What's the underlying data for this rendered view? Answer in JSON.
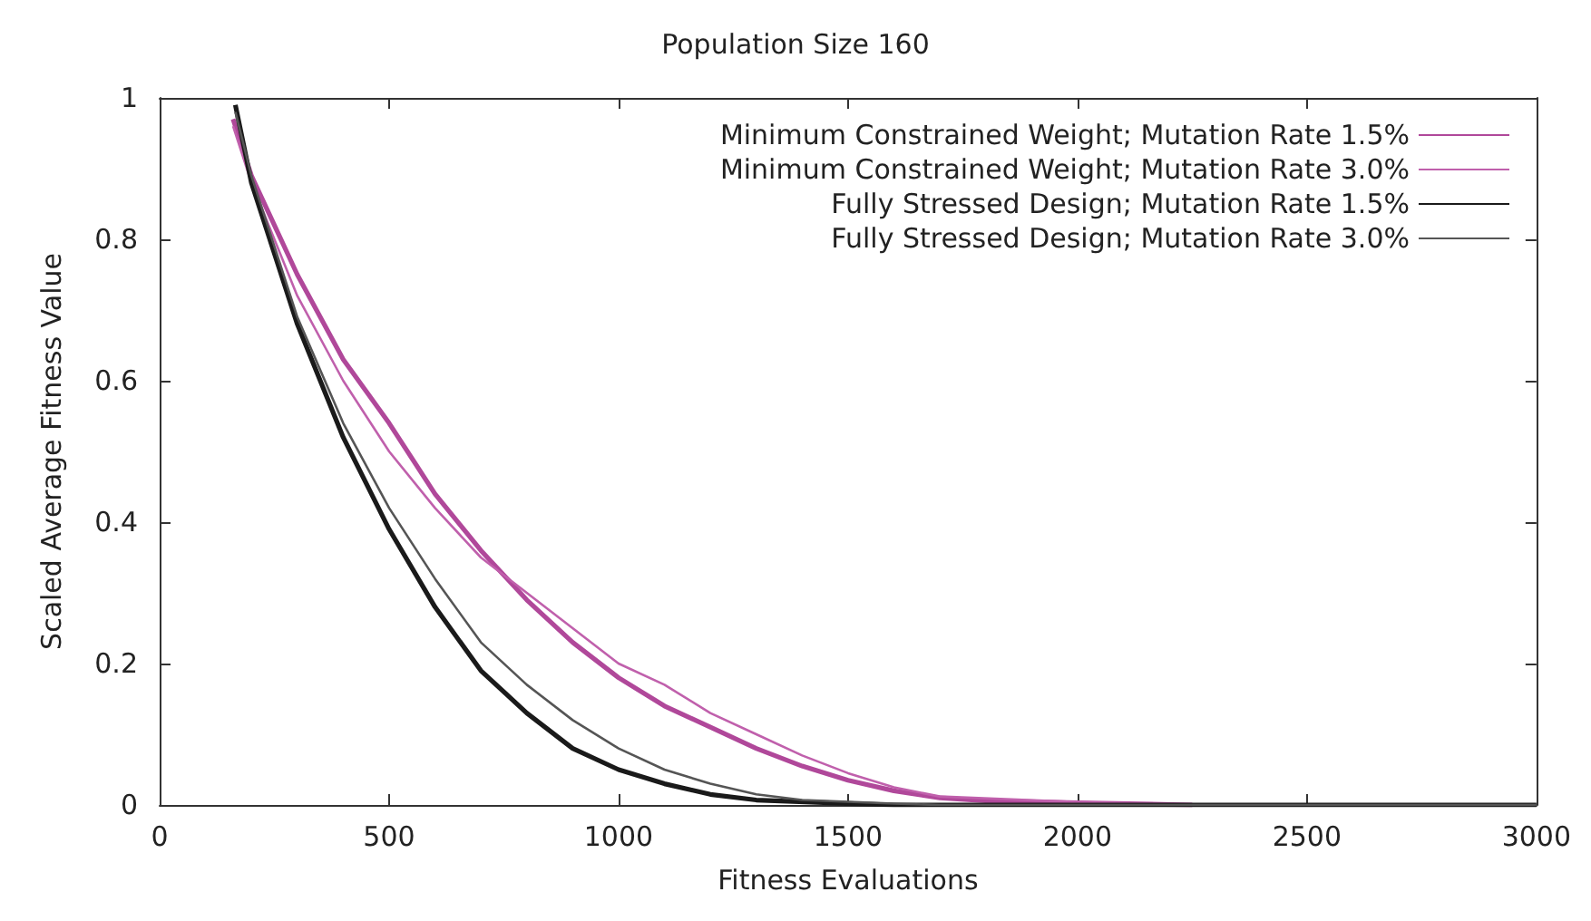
{
  "chart_data": {
    "type": "line",
    "title": "Population Size 160",
    "xlabel": "Fitness Evaluations",
    "ylabel": "Scaled Average Fitness Value",
    "xlim": [
      0,
      3000
    ],
    "xticks": [
      0,
      500,
      1000,
      1500,
      2000,
      2500,
      3000
    ],
    "ylim": [
      0,
      1
    ],
    "yticks": [
      0,
      0.2,
      0.4,
      0.6,
      0.8,
      1
    ],
    "grid": false,
    "legend": "top right",
    "marker": "none",
    "line_style": "solid",
    "series": [
      {
        "name": "Minimum Constrained Weight; Mutation Rate 1.5%",
        "color": "#b0489a",
        "x": [
          160,
          200,
          250,
          300,
          400,
          500,
          600,
          700,
          800,
          900,
          1000,
          1100,
          1200,
          1300,
          1400,
          1500,
          1600,
          1700,
          1800,
          2000,
          2250
        ],
        "values": [
          0.97,
          0.89,
          0.82,
          0.75,
          0.63,
          0.54,
          0.44,
          0.36,
          0.29,
          0.23,
          0.18,
          0.14,
          0.11,
          0.08,
          0.055,
          0.035,
          0.02,
          0.01,
          0.006,
          0.003,
          0
        ]
      },
      {
        "name": "Minimum Constrained Weight; Mutation Rate 3.0%",
        "color": "#c060ac",
        "x": [
          160,
          200,
          300,
          400,
          500,
          600,
          700,
          800,
          900,
          1000,
          1100,
          1200,
          1300,
          1400,
          1500,
          1600,
          1700,
          2000,
          2250
        ],
        "values": [
          0.96,
          0.88,
          0.72,
          0.6,
          0.5,
          0.42,
          0.35,
          0.3,
          0.25,
          0.2,
          0.17,
          0.13,
          0.1,
          0.07,
          0.045,
          0.025,
          0.012,
          0.004,
          0
        ]
      },
      {
        "name": "Fully Stressed Design; Mutation Rate 1.5%",
        "color": "#1a1a1a",
        "x": [
          165,
          200,
          300,
          400,
          500,
          600,
          700,
          800,
          900,
          1000,
          1100,
          1200,
          1300,
          1500,
          1600,
          3000
        ],
        "values": [
          0.99,
          0.88,
          0.68,
          0.52,
          0.39,
          0.28,
          0.19,
          0.13,
          0.08,
          0.05,
          0.03,
          0.015,
          0.007,
          0.002,
          0,
          0
        ]
      },
      {
        "name": "Fully Stressed Design; Mutation Rate 3.0%",
        "color": "#555555",
        "x": [
          165,
          200,
          300,
          400,
          500,
          600,
          700,
          800,
          900,
          1000,
          1100,
          1200,
          1300,
          1400,
          1600,
          1700,
          3000
        ],
        "values": [
          0.98,
          0.89,
          0.69,
          0.54,
          0.42,
          0.32,
          0.23,
          0.17,
          0.12,
          0.08,
          0.05,
          0.03,
          0.015,
          0.007,
          0.002,
          0,
          0
        ]
      }
    ]
  }
}
